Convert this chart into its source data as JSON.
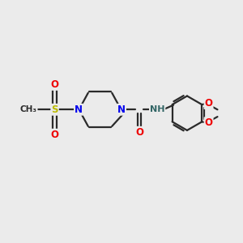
{
  "bg_color": "#ebebeb",
  "bond_color": "#2a2a2a",
  "bond_width": 1.6,
  "atom_colors": {
    "N": "#0000ee",
    "O": "#ee0000",
    "S": "#bbbb00",
    "NH": "#336666",
    "C": "#2a2a2a"
  },
  "font_size_large": 8.5,
  "font_size_small": 7.5
}
